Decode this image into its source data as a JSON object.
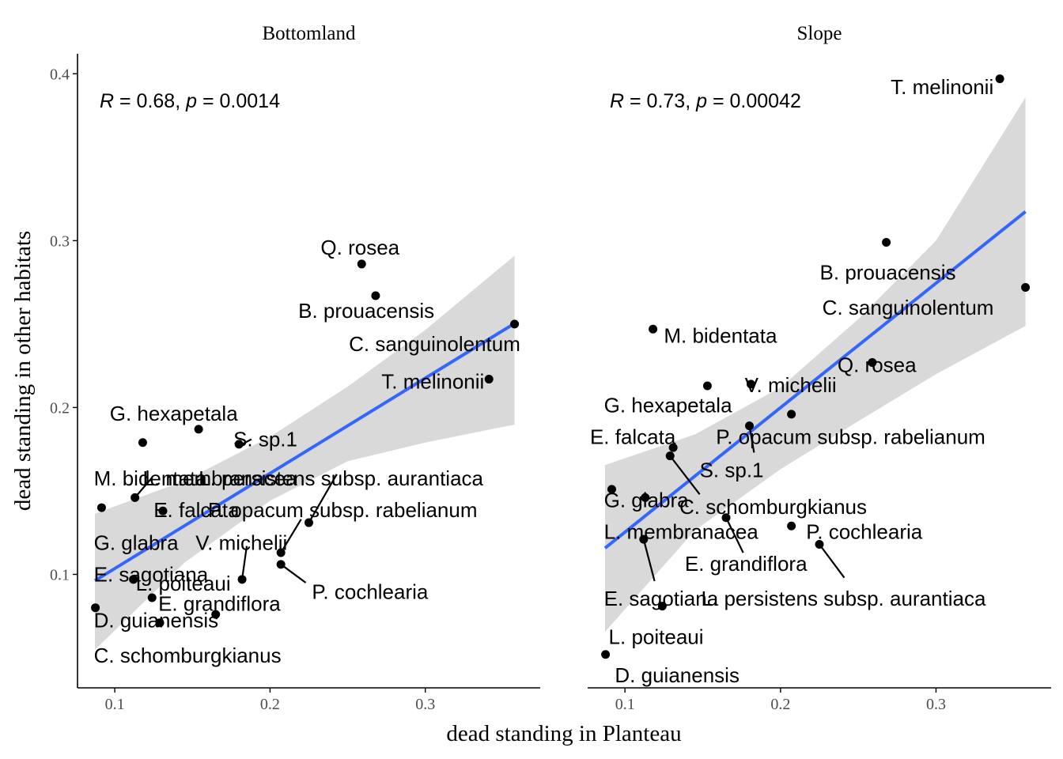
{
  "chart_data": {
    "type": "scatter",
    "xlabel": "dead standing in Planteau",
    "ylabel": "dead standing in other habitats",
    "x_ticks": [
      "0.1",
      "0.2",
      "0.3"
    ],
    "y_ticks": [
      "0.1",
      "0.2",
      "0.3",
      "0.4"
    ],
    "xlim": [
      0.076,
      0.374
    ],
    "ylim": [
      0.032,
      0.412
    ],
    "grid": false,
    "panels": [
      {
        "title": "Bottomland",
        "stat": {
          "r_symbol": "R",
          "r_value": "= 0.68,",
          "p_symbol": "p",
          "p_value": "= 0.0014"
        },
        "fit": {
          "x0": 0.0872,
          "y0": 0.0962,
          "x1": 0.3575,
          "y1": 0.2504
        },
        "band": {
          "upper": [
            [
              0.0872,
              0.1364
            ],
            [
              0.145,
              0.1561
            ],
            [
              0.2,
              0.1825
            ],
            [
              0.25,
              0.2125
            ],
            [
              0.3,
              0.2465
            ],
            [
              0.3575,
              0.291
            ]
          ],
          "lower": [
            [
              0.0872,
              0.0548
            ],
            [
              0.145,
              0.1071
            ],
            [
              0.2,
              0.1441
            ],
            [
              0.25,
              0.1678
            ],
            [
              0.3,
              0.179
            ],
            [
              0.3575,
              0.1898
            ]
          ]
        },
        "points": [
          {
            "name": "Q. rosea",
            "x": 0.259,
            "y": 0.286,
            "label": "Q. rosea",
            "lx": 0.258,
            "ly": 0.296,
            "anchor": "middle"
          },
          {
            "name": "B. prouacensis",
            "x": 0.268,
            "y": 0.267,
            "label": "B. prouacensis",
            "lx": 0.262,
            "ly": 0.258,
            "anchor": "middle"
          },
          {
            "name": "C. sanguinolentum",
            "x": 0.3575,
            "y": 0.25,
            "label": "C. sanguinolentum",
            "lx": 0.306,
            "ly": 0.238,
            "anchor": "middle"
          },
          {
            "name": "T. melinonii",
            "x": 0.341,
            "y": 0.217,
            "label": "T. melinonii",
            "lx": 0.338,
            "ly": 0.2155,
            "anchor": "end"
          },
          {
            "name": "G. hexapetala",
            "x": 0.154,
            "y": 0.187,
            "label": "G. hexapetala",
            "lx": 0.138,
            "ly": 0.1965,
            "anchor": "middle"
          },
          {
            "name": "S. sp.1",
            "x": 0.18,
            "y": 0.178,
            "label": "S. sp.1",
            "lx": 0.197,
            "ly": 0.181,
            "anchor": "middle",
            "lead": [
              0.182,
              0.178,
              0.188,
              0.181
            ]
          },
          {
            "name": "M. bidentata",
            "x": 0.118,
            "y": 0.179,
            "label": "M. bidentata",
            "lx": 0.0865,
            "ly": 0.1575,
            "anchor": "start"
          },
          {
            "name": "L. membranacea",
            "x": 0.113,
            "y": 0.146,
            "label": "L. membranacea",
            "lx": 0.118,
            "ly": 0.1575,
            "anchor": "start",
            "lead": [
              0.113,
              0.146,
              0.124,
              0.158
            ]
          },
          {
            "name": "L. persistens subsp. aurantiaca",
            "x": 0.225,
            "y": 0.131,
            "label": "L. persistens subsp. aurantiaca",
            "lx": 0.154,
            "ly": 0.1575,
            "anchor": "start",
            "lead": [
              0.225,
              0.131,
              0.243,
              0.16
            ]
          },
          {
            "name": "E. falcata",
            "x": 0.131,
            "y": 0.138,
            "label": "E. falcata",
            "lx": 0.125,
            "ly": 0.1385,
            "anchor": "start"
          },
          {
            "name": "P. opacum subsp. rabelianum",
            "x": 0.207,
            "y": 0.113,
            "label": "P. opacum subsp. rabelianum",
            "lx": 0.16,
            "ly": 0.1385,
            "anchor": "start",
            "lead": [
              0.207,
              0.113,
              0.22,
              0.133
            ]
          },
          {
            "name": "G. glabra",
            "x": 0.0915,
            "y": 0.14,
            "label": "G. glabra",
            "lx": 0.0865,
            "ly": 0.119,
            "anchor": "start",
            "lead": [
              0.0915,
              0.14,
              0.0915,
              0.14
            ]
          },
          {
            "name": "V. michelii",
            "x": 0.182,
            "y": 0.097,
            "label": "V. michelii",
            "lx": 0.152,
            "ly": 0.119,
            "anchor": "start",
            "lead": [
              0.182,
              0.097,
              0.185,
              0.117
            ]
          },
          {
            "name": "E. sagotiana",
            "x": 0.112,
            "y": 0.097,
            "label": "E. sagotiana",
            "lx": 0.0865,
            "ly": 0.1,
            "anchor": "start"
          },
          {
            "name": "L. poiteaui",
            "x": 0.124,
            "y": 0.086,
            "label": "L. poiteaui",
            "lx": 0.1135,
            "ly": 0.0945,
            "anchor": "start"
          },
          {
            "name": "E. grandiflora",
            "x": 0.165,
            "y": 0.076,
            "label": "E. grandiflora",
            "lx": 0.128,
            "ly": 0.0825,
            "anchor": "start"
          },
          {
            "name": "P. cochlearia",
            "x": 0.207,
            "y": 0.106,
            "label": "P. cochlearia",
            "lx": 0.227,
            "ly": 0.0895,
            "anchor": "start",
            "lead": [
              0.207,
              0.106,
              0.223,
              0.095
            ]
          },
          {
            "name": "D. guianensis",
            "x": 0.0875,
            "y": 0.08,
            "label": "D. guianensis",
            "lx": 0.0865,
            "ly": 0.0725,
            "anchor": "start"
          },
          {
            "name": "C. schomburgkianus",
            "x": 0.129,
            "y": 0.071,
            "label": "C. schomburgkianus",
            "lx": 0.0865,
            "ly": 0.0515,
            "anchor": "start"
          }
        ]
      },
      {
        "title": "Slope",
        "stat": {
          "r_symbol": "R",
          "r_value": "= 0.73,",
          "p_symbol": "p",
          "p_value": "= 0.00042"
        },
        "fit": {
          "x0": 0.0872,
          "y0": 0.1158,
          "x1": 0.3575,
          "y1": 0.3174
        },
        "band": {
          "upper": [
            [
              0.0872,
              0.1655
            ],
            [
              0.145,
              0.1839
            ],
            [
              0.2,
              0.212
            ],
            [
              0.25,
              0.253
            ],
            [
              0.3,
              0.3
            ],
            [
              0.3575,
              0.3858
            ]
          ],
          "lower": [
            [
              0.0872,
              0.0656
            ],
            [
              0.145,
              0.1264
            ],
            [
              0.2,
              0.163
            ],
            [
              0.25,
              0.1918
            ],
            [
              0.3,
              0.22
            ],
            [
              0.3575,
              0.2489
            ]
          ]
        },
        "points": [
          {
            "name": "T. melinonii",
            "x": 0.341,
            "y": 0.397,
            "label": "T. melinonii",
            "lx": 0.337,
            "ly": 0.392,
            "anchor": "end"
          },
          {
            "name": "B. prouacensis",
            "x": 0.268,
            "y": 0.299,
            "label": "B. prouacensis",
            "lx": 0.269,
            "ly": 0.281,
            "anchor": "middle"
          },
          {
            "name": "C. sanguinolentum",
            "x": 0.3575,
            "y": 0.272,
            "label": "C. sanguinolentum",
            "lx": 0.282,
            "ly": 0.26,
            "anchor": "middle"
          },
          {
            "name": "M. bidentata",
            "x": 0.118,
            "y": 0.247,
            "label": "M. bidentata",
            "lx": 0.125,
            "ly": 0.243,
            "anchor": "start"
          },
          {
            "name": "Q. rosea",
            "x": 0.259,
            "y": 0.227,
            "label": "Q. rosea",
            "lx": 0.262,
            "ly": 0.2255,
            "anchor": "middle"
          },
          {
            "name": "V. michelii",
            "x": 0.181,
            "y": 0.214,
            "label": "V. michelii",
            "lx": 0.2065,
            "ly": 0.2135,
            "anchor": "middle"
          },
          {
            "name": "G. hexapetala",
            "x": 0.153,
            "y": 0.213,
            "label": "G. hexapetala",
            "lx": 0.0865,
            "ly": 0.2015,
            "anchor": "start"
          },
          {
            "name": "P. opacum subsp. rabelianum",
            "x": 0.207,
            "y": 0.196,
            "label": "P. opacum subsp. rabelianum",
            "lx": 0.1585,
            "ly": 0.1825,
            "anchor": "start"
          },
          {
            "name": "S. sp.1",
            "x": 0.18,
            "y": 0.189,
            "label": "S. sp.1",
            "lx": 0.148,
            "ly": 0.1625,
            "anchor": "start",
            "lead": [
              0.18,
              0.189,
              0.183,
              0.173
            ]
          },
          {
            "name": "E. falcata",
            "x": 0.131,
            "y": 0.176,
            "label": "E. falcata",
            "lx": 0.0775,
            "ly": 0.1825,
            "anchor": "start"
          },
          {
            "name": "G. glabra",
            "x": 0.0915,
            "y": 0.151,
            "label": "G. glabra",
            "lx": 0.0865,
            "ly": 0.1445,
            "anchor": "start"
          },
          {
            "name": "C. schomburgkianus",
            "x": 0.129,
            "y": 0.171,
            "label": "C. schomburgkianus",
            "lx": 0.135,
            "ly": 0.1405,
            "anchor": "start",
            "lead": [
              0.129,
              0.171,
              0.148,
              0.148
            ]
          },
          {
            "name": "L. membranacea",
            "x": 0.113,
            "y": 0.146,
            "label": "L. membranacea",
            "lx": 0.0865,
            "ly": 0.1255,
            "anchor": "start"
          },
          {
            "name": "P. cochlearia",
            "x": 0.207,
            "y": 0.129,
            "label": "P. cochlearia",
            "lx": 0.2165,
            "ly": 0.1255,
            "anchor": "start"
          },
          {
            "name": "E. grandiflora",
            "x": 0.165,
            "y": 0.134,
            "label": "E. grandiflora",
            "lx": 0.1385,
            "ly": 0.1065,
            "anchor": "start",
            "lead": [
              0.165,
              0.134,
              0.176,
              0.113
            ]
          },
          {
            "name": "E. sagotiana",
            "x": 0.112,
            "y": 0.121,
            "label": "E. sagotiana",
            "lx": 0.0865,
            "ly": 0.0855,
            "anchor": "start",
            "lead": [
              0.112,
              0.121,
              0.119,
              0.096
            ]
          },
          {
            "name": "L. persistens subsp. aurantiaca",
            "x": 0.225,
            "y": 0.118,
            "label": "L. persistens subsp. aurantiaca",
            "lx": 0.149,
            "ly": 0.0855,
            "anchor": "start",
            "lead": [
              0.225,
              0.118,
              0.241,
              0.098
            ]
          },
          {
            "name": "L. poiteaui",
            "x": 0.124,
            "y": 0.081,
            "label": "L. poiteaui",
            "lx": 0.0895,
            "ly": 0.0625,
            "anchor": "start"
          },
          {
            "name": "D. guianensis",
            "x": 0.0875,
            "y": 0.052,
            "label": "D. guianensis",
            "lx": 0.0935,
            "ly": 0.0395,
            "anchor": "start"
          }
        ]
      }
    ]
  },
  "colors": {
    "fit_line": "#3366FF",
    "band": "#D9D9D9",
    "point": "#000000",
    "axis": "#000000"
  }
}
